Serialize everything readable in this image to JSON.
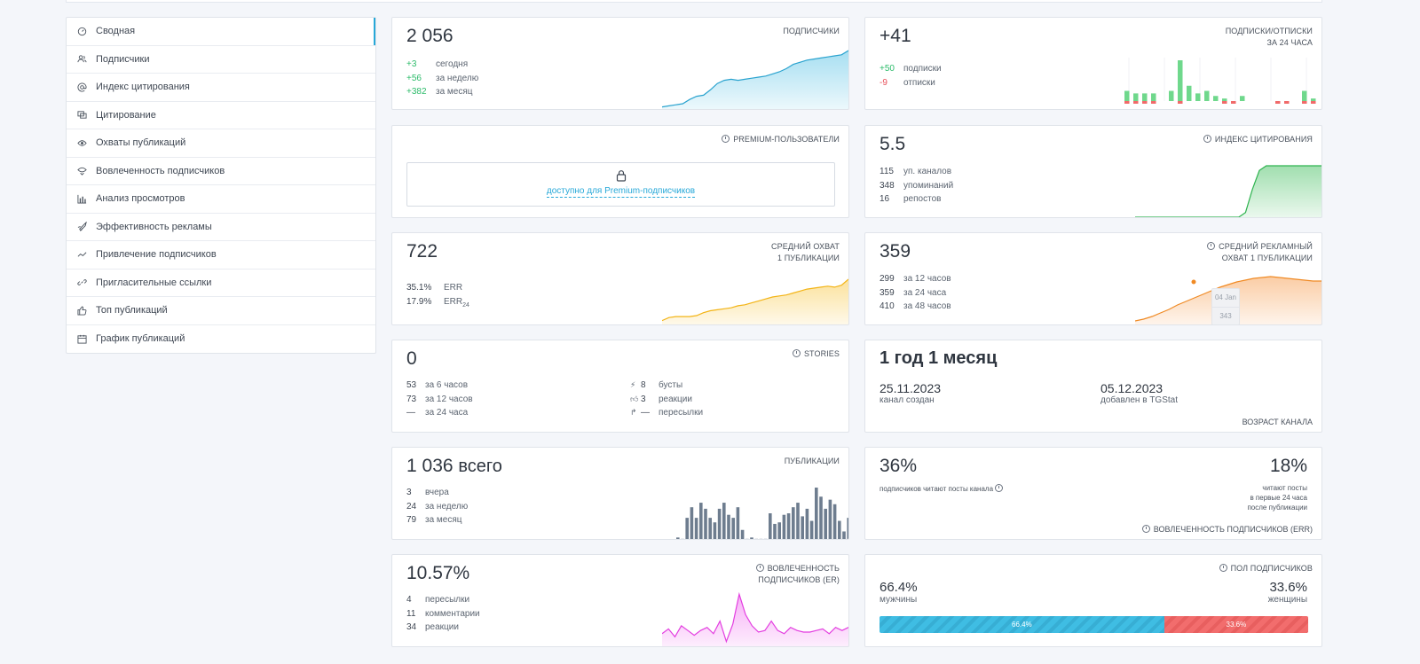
{
  "sidebar": {
    "items": [
      {
        "label": "Сводная",
        "icon": "dashboard-icon"
      },
      {
        "label": "Подписчики",
        "icon": "users-icon"
      },
      {
        "label": "Индекс цитирования",
        "icon": "at-icon"
      },
      {
        "label": "Цитирование",
        "icon": "quote-icon"
      },
      {
        "label": "Охваты публикаций",
        "icon": "eye-icon"
      },
      {
        "label": "Вовлеченность подписчиков",
        "icon": "heart-eye-icon"
      },
      {
        "label": "Анализ просмотров",
        "icon": "bar-chart-icon"
      },
      {
        "label": "Эффективность рекламы",
        "icon": "rocket-icon"
      },
      {
        "label": "Привлечение подписчиков",
        "icon": "trend-icon"
      },
      {
        "label": "Пригласительные ссылки",
        "icon": "link-icon"
      },
      {
        "label": "Топ публикаций",
        "icon": "thumbs-up-icon"
      },
      {
        "label": "График публикаций",
        "icon": "calendar-icon"
      }
    ]
  },
  "subscribers": {
    "value": "2 056",
    "label": "ПОДПИСЧИКИ",
    "stats": [
      {
        "num": "+3",
        "text": "сегодня"
      },
      {
        "num": "+56",
        "text": "за неделю"
      },
      {
        "num": "+382",
        "text": "за месяц"
      }
    ]
  },
  "subs_24h": {
    "value": "+41",
    "label1": "ПОДПИСКИ/ОТПИСКИ",
    "label2": "ЗА 24 ЧАСА",
    "stats": [
      {
        "num": "+50",
        "text": "подписки"
      },
      {
        "num": "-9",
        "text": "отписки"
      }
    ]
  },
  "premium": {
    "label": "PREMIUM-ПОЛЬЗОВАТЕЛИ",
    "link": "доступно для Premium-подписчиков"
  },
  "citation": {
    "value": "5.5",
    "label": "ИНДЕКС ЦИТИРОВАНИЯ",
    "stats": [
      {
        "num": "115",
        "text": "уп. каналов"
      },
      {
        "num": "348",
        "text": "упоминаний"
      },
      {
        "num": "16",
        "text": "репостов"
      }
    ]
  },
  "avg_reach": {
    "value": "722",
    "label1": "СРЕДНИЙ ОХВАТ",
    "label2": "1 ПУБЛИКАЦИИ",
    "stats": [
      {
        "num": "35.1%",
        "text": "ERR"
      },
      {
        "num": "17.9%",
        "text": "ERR",
        "sub": "24"
      }
    ]
  },
  "ad_reach": {
    "value": "359",
    "label1": "СРЕДНИЙ РЕКЛАМНЫЙ",
    "label2": "ОХВАТ 1 ПУБЛИКАЦИИ",
    "stats": [
      {
        "num": "299",
        "text": "за 12 часов"
      },
      {
        "num": "359",
        "text": "за 24 часа"
      },
      {
        "num": "410",
        "text": "за 48 часов"
      }
    ],
    "tooltip_date": "04 Jan",
    "tooltip_value": "343"
  },
  "stories": {
    "value": "0",
    "label": "STORIES",
    "left": [
      {
        "num": "53",
        "text": "за 6 часов"
      },
      {
        "num": "73",
        "text": "за 12 часов"
      },
      {
        "num": "—",
        "text": "за 24 часа"
      }
    ],
    "right": [
      {
        "num": "8",
        "text": "бусты",
        "icon": "boost-icon"
      },
      {
        "num": "3",
        "text": "реакции",
        "icon": "thumbs-up-icon"
      },
      {
        "num": "—",
        "text": "пересылки",
        "icon": "share-icon"
      }
    ]
  },
  "age": {
    "value": "1 год 1 месяц",
    "created_date": "25.11.2023",
    "created_label": "канал создан",
    "added_date": "05.12.2023",
    "added_label": "добавлен в TGStat",
    "label": "ВОЗРАСТ КАНАЛА"
  },
  "posts": {
    "value": "1 036",
    "suffix": "всего",
    "label": "ПУБЛИКАЦИИ",
    "stats": [
      {
        "num": "3",
        "text": "вчера"
      },
      {
        "num": "24",
        "text": "за неделю"
      },
      {
        "num": "79",
        "text": "за месяц"
      }
    ]
  },
  "err": {
    "value_left": "36%",
    "text_left": "подписчиков читают посты канала",
    "value_right": "18%",
    "text_right1": "читают посты",
    "text_right2": "в первые 24 часа",
    "text_right3": "после публикации",
    "label": "ВОВЛЕЧЕННОСТЬ ПОДПИСЧИКОВ (ERR)"
  },
  "er": {
    "value": "10.57%",
    "label1": "ВОВЛЕЧЕННОСТЬ",
    "label2": "ПОДПИСЧИКОВ (ER)",
    "stats": [
      {
        "num": "4",
        "text": "пересылки"
      },
      {
        "num": "11",
        "text": "комментарии"
      },
      {
        "num": "34",
        "text": "реакции"
      }
    ]
  },
  "gender": {
    "label": "ПОЛ ПОДПИСЧИКОВ",
    "male_value": "66.4%",
    "male_label": "мужчины",
    "female_value": "33.6%",
    "female_label": "женщины",
    "male_share": 66.4,
    "female_share": 33.6
  },
  "chart_data": [
    {
      "type": "area",
      "name_hint": "subscribers",
      "values": [
        2,
        3,
        4,
        5,
        9,
        12,
        13,
        18,
        24,
        27,
        28,
        27,
        28,
        29,
        30,
        31,
        33,
        35,
        38,
        42,
        44,
        46,
        47,
        48,
        49,
        50,
        51,
        55
      ]
    },
    {
      "type": "bar",
      "name_hint": "subs_24h",
      "plus": [
        4,
        3,
        3,
        3,
        0,
        4,
        16,
        6,
        3,
        4,
        2,
        1,
        0,
        2,
        0,
        0,
        0,
        0,
        0,
        0,
        4,
        1
      ],
      "minus": [
        1,
        1,
        1,
        1,
        0,
        0,
        1,
        0,
        0,
        0,
        0,
        1,
        1,
        0,
        0,
        0,
        0,
        1,
        1,
        0,
        1,
        1
      ]
    },
    {
      "type": "area",
      "name_hint": "citation",
      "values": [
        0,
        0,
        0,
        0,
        0,
        0,
        0,
        0,
        0,
        0,
        0,
        0,
        0,
        0,
        0,
        0,
        2,
        12,
        20,
        22,
        22,
        22,
        22,
        22,
        22,
        22,
        22,
        22
      ]
    },
    {
      "type": "area",
      "name_hint": "avg_reach",
      "values": [
        4,
        7,
        8,
        8,
        8,
        9,
        12,
        14,
        15,
        16,
        17,
        19,
        20,
        22,
        24,
        26,
        28,
        29,
        30,
        32,
        34,
        36,
        37,
        38,
        39,
        38,
        40,
        46
      ]
    },
    {
      "type": "area",
      "name_hint": "ad_reach",
      "values": [
        4,
        6,
        9,
        13,
        17,
        22,
        26,
        30,
        34,
        38,
        42,
        45,
        48,
        50,
        52,
        53,
        54,
        53,
        52,
        51,
        50,
        49,
        49
      ]
    },
    {
      "type": "bar",
      "name_hint": "posts",
      "values": [
        1,
        0,
        14,
        21,
        14,
        24,
        20,
        14,
        11,
        20,
        24,
        16,
        14,
        21,
        6,
        0,
        1,
        0,
        0,
        0,
        17,
        10,
        11,
        16,
        17,
        21,
        24,
        15,
        20,
        12,
        34,
        28,
        20,
        26,
        23,
        12,
        5,
        14
      ]
    },
    {
      "type": "area",
      "name_hint": "er",
      "values": [
        8,
        11,
        6,
        13,
        10,
        7,
        10,
        12,
        8,
        16,
        3,
        14,
        33,
        20,
        13,
        9,
        10,
        16,
        10,
        8,
        12,
        10,
        9,
        9,
        10,
        11,
        8,
        12,
        10,
        12
      ]
    }
  ]
}
